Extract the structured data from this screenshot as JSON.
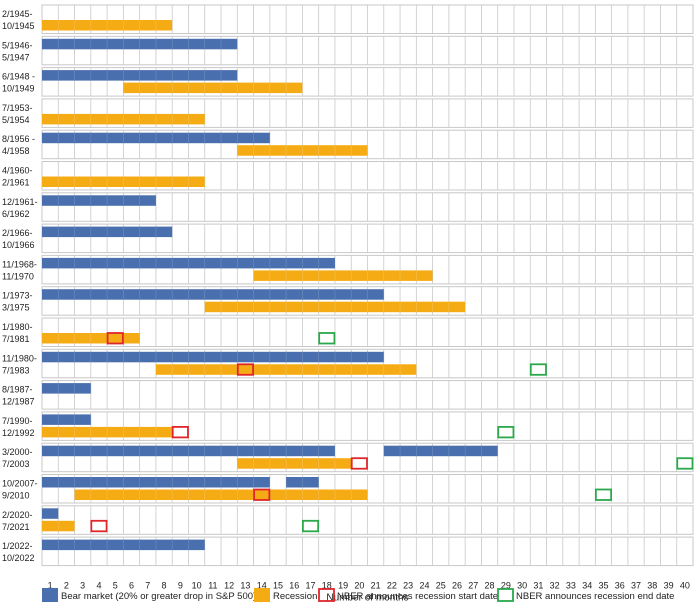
{
  "chart_data": {
    "type": "bar",
    "subtype": "gantt-timeline",
    "xlabel": "Number of months",
    "x_ticks": [
      "1",
      "2",
      "3",
      "4",
      "5",
      "6",
      "7",
      "8",
      "9",
      "10",
      "11",
      "12",
      "13",
      "14",
      "15",
      "16",
      "17",
      "18",
      "19",
      "20",
      "21",
      "22",
      "23",
      "24",
      "25",
      "26",
      "27",
      "28",
      "29",
      "30",
      "31",
      "32",
      "33",
      "34",
      "35",
      "36",
      "37",
      "38",
      "39",
      "40"
    ],
    "colors": {
      "bear": "#4a6fae",
      "recession": "#f5ab14",
      "nber_start": "#e0262b",
      "nber_end": "#2aa84a",
      "grid": "#c8c8c8"
    },
    "legend": {
      "position": "bottom",
      "items": [
        {
          "key": "bear",
          "label": "Bear market (20% or greater drop in S&P 500)"
        },
        {
          "key": "recession",
          "label": "Recession"
        },
        {
          "key": "nber_start",
          "label": "NBER announces recession start date"
        },
        {
          "key": "nber_end",
          "label": "NBER announces recession end date"
        }
      ]
    },
    "rows": [
      {
        "label1": "2/1945-",
        "label2": "10/1945",
        "bear": [],
        "recession": [
          [
            1,
            8
          ]
        ]
      },
      {
        "label1": "5/1946-",
        "label2": "5/1947",
        "bear": [
          [
            1,
            12
          ]
        ],
        "recession": []
      },
      {
        "label1": "6/1948 -",
        "label2": "10/1949",
        "bear": [
          [
            1,
            12
          ]
        ],
        "recession": [
          [
            6,
            16
          ]
        ]
      },
      {
        "label1": "7/1953-",
        "label2": "5/1954",
        "bear": [],
        "recession": [
          [
            1,
            10
          ]
        ]
      },
      {
        "label1": "8/1956 -",
        "label2": "4/1958",
        "bear": [
          [
            1,
            14
          ]
        ],
        "recession": [
          [
            13,
            20
          ]
        ]
      },
      {
        "label1": "4/1960-",
        "label2": "2/1961",
        "bear": [],
        "recession": [
          [
            1,
            10
          ]
        ]
      },
      {
        "label1": "12/1961-",
        "label2": "6/1962",
        "bear": [
          [
            1,
            7
          ]
        ],
        "recession": []
      },
      {
        "label1": "2/1966-",
        "label2": "10/1966",
        "bear": [
          [
            1,
            8
          ]
        ],
        "recession": []
      },
      {
        "label1": "11/1968-",
        "label2": "11/1970",
        "bear": [
          [
            1,
            18
          ]
        ],
        "recession": [
          [
            14,
            24
          ]
        ]
      },
      {
        "label1": "1/1973-",
        "label2": "3/1975",
        "bear": [
          [
            1,
            21
          ]
        ],
        "recession": [
          [
            11,
            26
          ]
        ]
      },
      {
        "label1": "1/1980-",
        "label2": "7/1981",
        "bear": [],
        "recession": [
          [
            1,
            6
          ]
        ],
        "nber_start": 5,
        "nber_end": 18
      },
      {
        "label1": "11/1980-",
        "label2": "7/1983",
        "bear": [
          [
            1,
            21
          ]
        ],
        "recession": [
          [
            8,
            23
          ]
        ],
        "nber_start": 13,
        "nber_end": 31
      },
      {
        "label1": "8/1987-",
        "label2": "12/1987",
        "bear": [
          [
            1,
            3
          ]
        ],
        "recession": []
      },
      {
        "label1": "7/1990-",
        "label2": "12/1992",
        "bear": [
          [
            1,
            3
          ]
        ],
        "recession": [
          [
            1,
            8
          ]
        ],
        "nber_start": 9,
        "nber_end": 29
      },
      {
        "label1": "3/2000-",
        "label2": "7/2003",
        "bear": [
          [
            1,
            18
          ],
          [
            22,
            28
          ]
        ],
        "recession": [
          [
            13,
            19
          ]
        ],
        "nber_start": 20,
        "nber_end": 40
      },
      {
        "label1": "10/2007-",
        "label2": "9/2010",
        "bear": [
          [
            1,
            14
          ],
          [
            16,
            17
          ]
        ],
        "recession": [
          [
            3,
            20
          ]
        ],
        "nber_start": 14,
        "nber_end": 35
      },
      {
        "label1": "2/2020-",
        "label2": "7/2021",
        "bear": [
          [
            1,
            1
          ]
        ],
        "recession": [
          [
            1,
            2
          ]
        ],
        "nber_start": 4,
        "nber_end": 17
      },
      {
        "label1": "1/2022-",
        "label2": "10/2022",
        "bear": [
          [
            1,
            10
          ]
        ],
        "recession": []
      }
    ]
  }
}
